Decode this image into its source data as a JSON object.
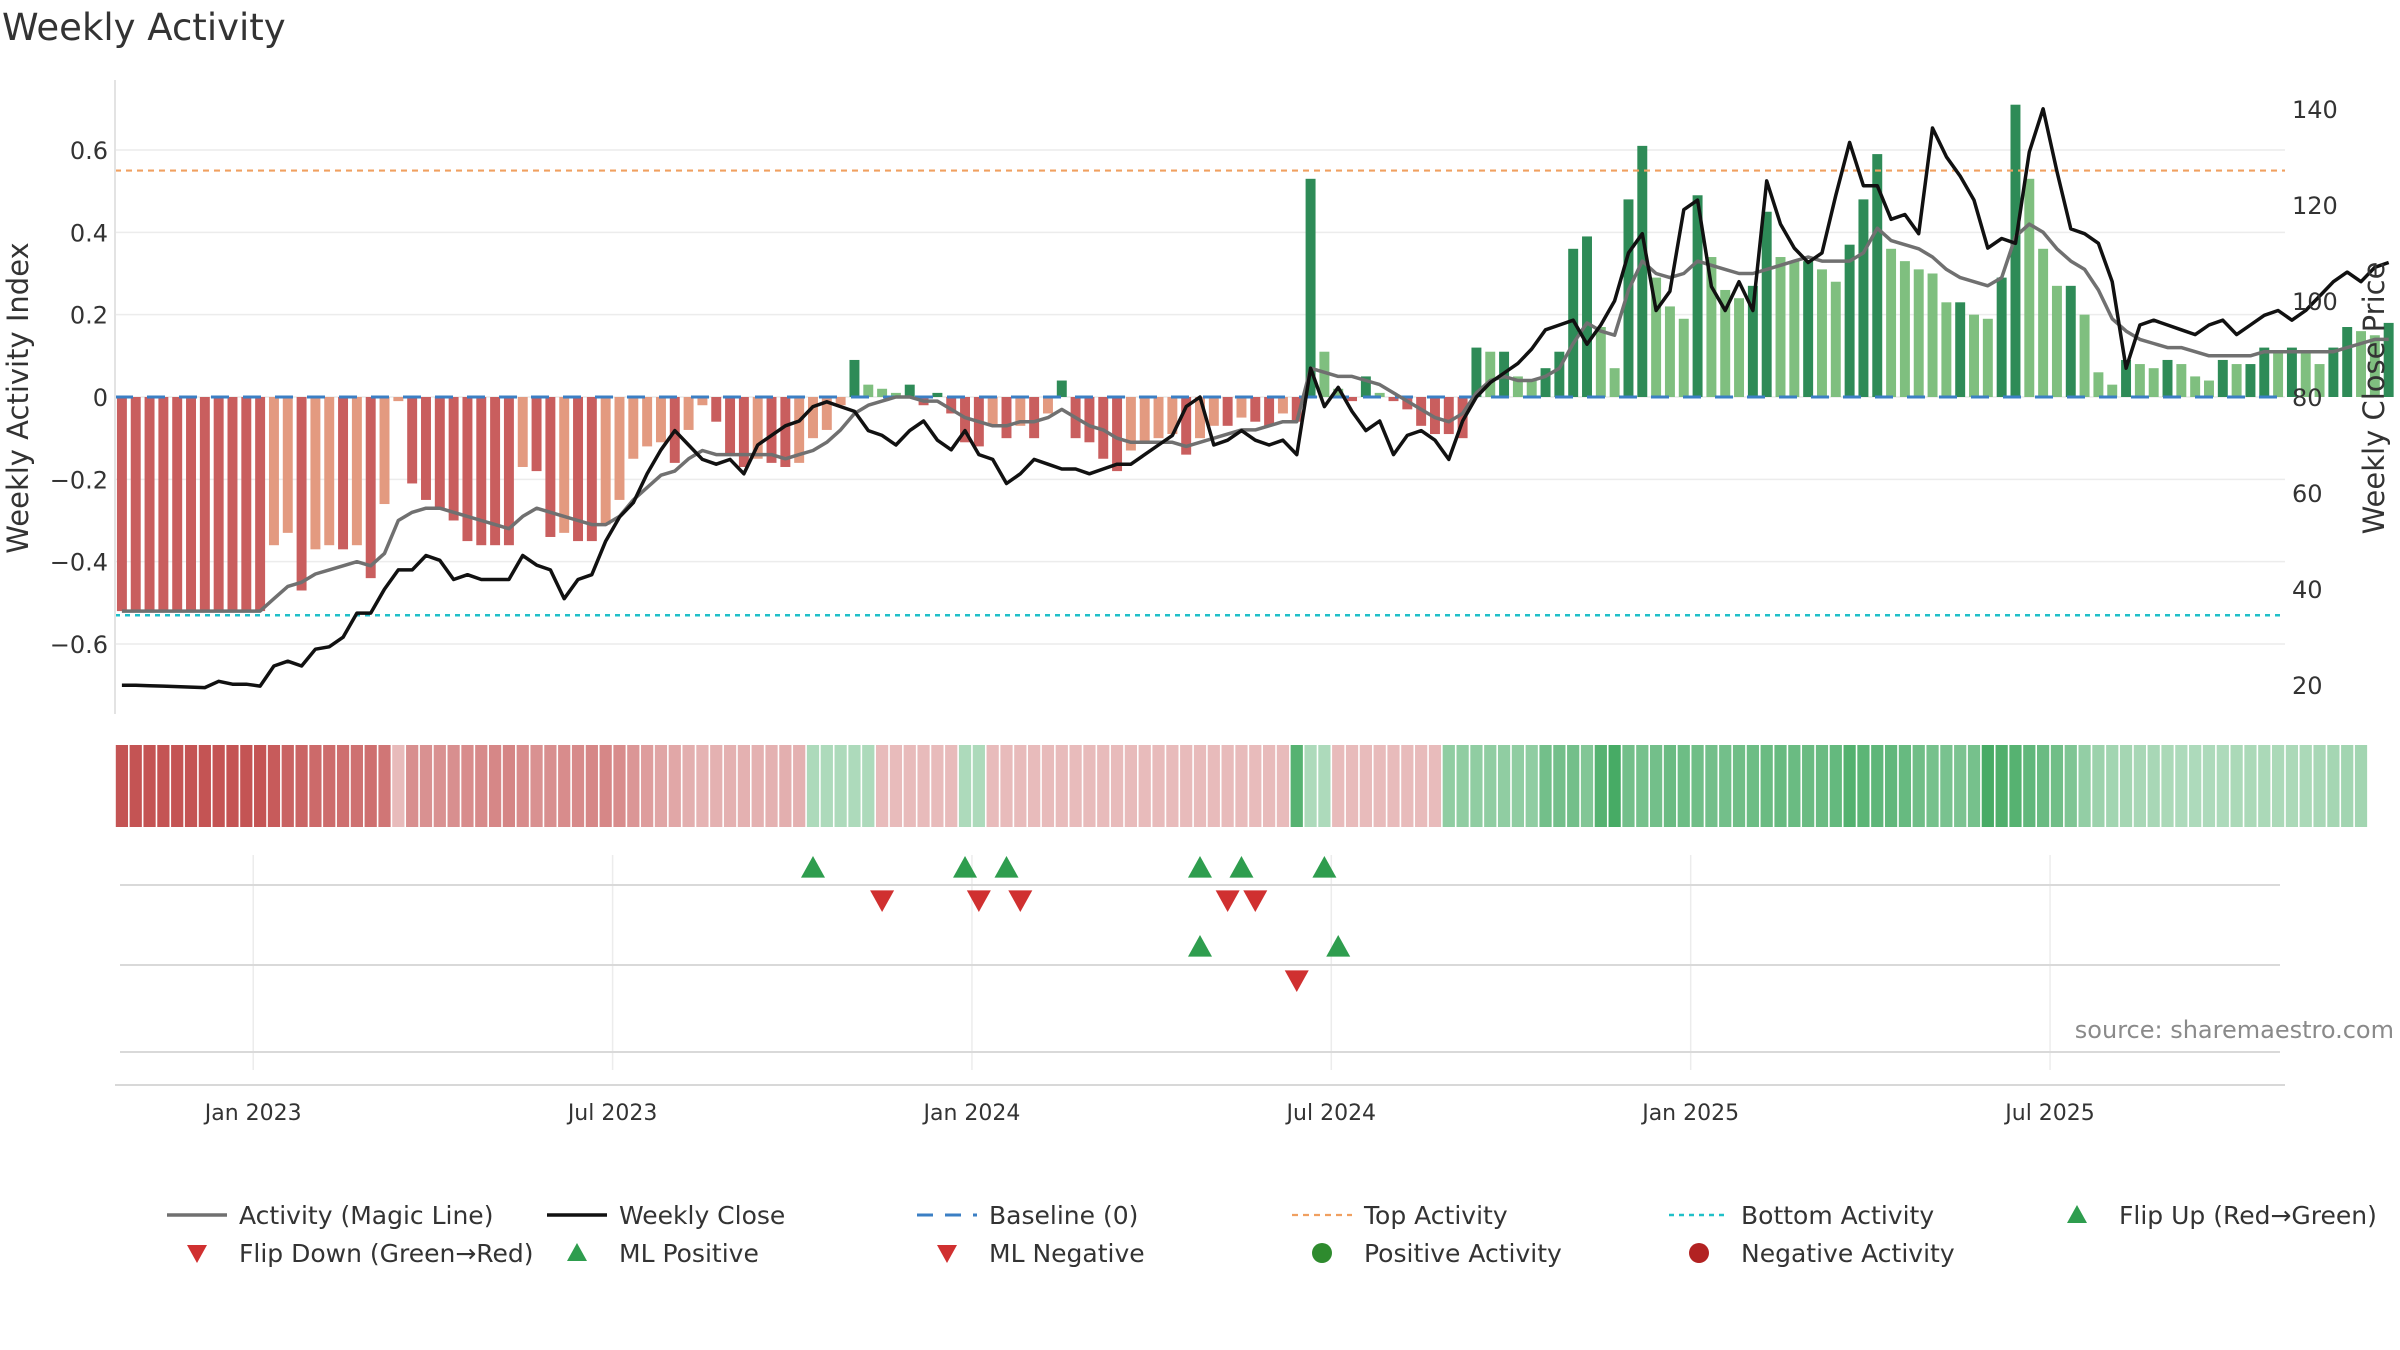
{
  "chart_data": {
    "type": "bar",
    "title": "Weekly Activity",
    "source": "source: sharemaestro.com",
    "ylabel_left": "Weekly Activity Index",
    "ylabel_right": "Weekly Close Price",
    "ylim_left": [
      -0.77,
      0.77
    ],
    "ylim_right": [
      14,
      146
    ],
    "yticks_left": [
      {
        "value": 0.6,
        "label": "0.6"
      },
      {
        "value": 0.4,
        "label": "0.4"
      },
      {
        "value": 0.2,
        "label": "0.2"
      },
      {
        "value": 0,
        "label": "0"
      },
      {
        "value": -0.2,
        "label": "−0.2"
      },
      {
        "value": -0.4,
        "label": "−0.4"
      },
      {
        "value": -0.6,
        "label": "−0.6"
      }
    ],
    "yticks_right": [
      {
        "value": 140,
        "label": "140"
      },
      {
        "value": 120,
        "label": "120"
      },
      {
        "value": 100,
        "label": "100"
      },
      {
        "value": 80,
        "label": "80"
      },
      {
        "value": 60,
        "label": "60"
      },
      {
        "value": 40,
        "label": "40"
      },
      {
        "value": 20,
        "label": "20"
      }
    ],
    "xticks": [
      {
        "week": 9.5,
        "label": "Jan 2023"
      },
      {
        "week": 35.5,
        "label": "Jul 2023"
      },
      {
        "week": 61.5,
        "label": "Jan 2024"
      },
      {
        "week": 87.5,
        "label": "Jul 2024"
      },
      {
        "week": 113.5,
        "label": "Jan 2025"
      },
      {
        "week": 139.5,
        "label": "Jul 2025"
      }
    ],
    "n_weeks": 157,
    "top_activity": 0.55,
    "bottom_activity": -0.53,
    "baseline": 0,
    "activity": [
      -0.52,
      -0.52,
      -0.52,
      -0.52,
      -0.52,
      -0.52,
      -0.52,
      -0.52,
      -0.52,
      -0.52,
      -0.52,
      -0.36,
      -0.33,
      -0.47,
      -0.37,
      -0.36,
      -0.37,
      -0.36,
      -0.44,
      -0.26,
      -0.01,
      -0.21,
      -0.25,
      -0.27,
      -0.3,
      -0.35,
      -0.36,
      -0.36,
      -0.36,
      -0.17,
      -0.18,
      -0.34,
      -0.33,
      -0.35,
      -0.35,
      -0.31,
      -0.25,
      -0.15,
      -0.12,
      -0.11,
      -0.16,
      -0.08,
      -0.02,
      -0.06,
      -0.14,
      -0.17,
      -0.15,
      -0.16,
      -0.17,
      -0.16,
      -0.1,
      -0.08,
      -0.02,
      0.09,
      0.03,
      0.02,
      0.01,
      0.03,
      -0.02,
      0.01,
      -0.04,
      -0.11,
      -0.12,
      -0.07,
      -0.1,
      -0.07,
      -0.1,
      -0.04,
      0.04,
      -0.1,
      -0.11,
      -0.15,
      -0.18,
      -0.13,
      -0.11,
      -0.1,
      -0.09,
      -0.14,
      -0.1,
      -0.07,
      -0.07,
      -0.05,
      -0.06,
      -0.07,
      -0.04,
      -0.06,
      0.53,
      0.11,
      0.02,
      -0.01,
      0.05,
      0.01,
      -0.01,
      -0.03,
      -0.07,
      -0.09,
      -0.09,
      -0.1,
      0.12,
      0.11,
      0.11,
      0.05,
      0.04,
      0.07,
      0.11,
      0.36,
      0.39,
      0.17,
      0.07,
      0.48,
      0.61,
      0.29,
      0.22,
      0.19,
      0.49,
      0.34,
      0.26,
      0.24,
      0.27,
      0.45,
      0.34,
      0.33,
      0.33,
      0.31,
      0.28,
      0.37,
      0.48,
      0.59,
      0.36,
      0.33,
      0.31,
      0.3,
      0.23,
      0.23,
      0.2,
      0.19,
      0.29,
      0.71,
      0.53,
      0.36,
      0.27,
      0.27,
      0.2,
      0.06,
      0.03,
      0.09,
      0.08,
      0.07,
      0.09,
      0.08,
      0.05,
      0.04,
      0.09,
      0.08,
      0.08,
      0.12,
      0.11,
      0.12,
      0.11,
      0.08,
      0.12,
      0.17,
      0.16,
      0.15,
      0.18
    ],
    "magic_line": [
      -0.52,
      -0.52,
      -0.52,
      -0.52,
      -0.52,
      -0.52,
      -0.52,
      -0.52,
      -0.52,
      -0.52,
      -0.52,
      -0.49,
      -0.46,
      -0.45,
      -0.43,
      -0.42,
      -0.41,
      -0.4,
      -0.41,
      -0.38,
      -0.3,
      -0.28,
      -0.27,
      -0.27,
      -0.28,
      -0.29,
      -0.3,
      -0.31,
      -0.32,
      -0.29,
      -0.27,
      -0.28,
      -0.29,
      -0.3,
      -0.31,
      -0.31,
      -0.29,
      -0.25,
      -0.22,
      -0.19,
      -0.18,
      -0.15,
      -0.13,
      -0.14,
      -0.14,
      -0.14,
      -0.14,
      -0.14,
      -0.15,
      -0.14,
      -0.13,
      -0.11,
      -0.08,
      -0.04,
      -0.02,
      -0.01,
      0.0,
      0.0,
      -0.01,
      -0.01,
      -0.03,
      -0.05,
      -0.06,
      -0.07,
      -0.07,
      -0.06,
      -0.06,
      -0.05,
      -0.03,
      -0.05,
      -0.07,
      -0.08,
      -0.1,
      -0.11,
      -0.11,
      -0.11,
      -0.11,
      -0.12,
      -0.11,
      -0.1,
      -0.09,
      -0.08,
      -0.08,
      -0.07,
      -0.06,
      -0.06,
      0.07,
      0.06,
      0.05,
      0.05,
      0.04,
      0.03,
      0.01,
      -0.01,
      -0.03,
      -0.05,
      -0.06,
      -0.04,
      0.01,
      0.04,
      0.05,
      0.04,
      0.04,
      0.05,
      0.07,
      0.13,
      0.18,
      0.16,
      0.15,
      0.26,
      0.33,
      0.3,
      0.29,
      0.3,
      0.33,
      0.32,
      0.31,
      0.3,
      0.3,
      0.31,
      0.32,
      0.33,
      0.34,
      0.33,
      0.33,
      0.33,
      0.35,
      0.41,
      0.38,
      0.37,
      0.36,
      0.34,
      0.31,
      0.29,
      0.28,
      0.27,
      0.29,
      0.39,
      0.42,
      0.4,
      0.36,
      0.33,
      0.31,
      0.26,
      0.19,
      0.16,
      0.14,
      0.13,
      0.12,
      0.12,
      0.11,
      0.1,
      0.1,
      0.1,
      0.1,
      0.11,
      0.11,
      0.11,
      0.11,
      0.11,
      0.11,
      0.12,
      0.13,
      0.14,
      0.14
    ],
    "weekly_close": [
      20,
      20,
      19.9,
      19.8,
      19.7,
      19.6,
      19.5,
      20.8,
      20.2,
      20.2,
      19.8,
      24,
      25,
      24,
      27.5,
      28,
      30,
      35,
      35,
      40,
      44,
      44,
      47,
      46,
      42,
      43,
      42,
      42,
      42,
      47,
      45,
      44,
      38,
      42,
      43,
      50,
      55,
      58,
      64,
      69,
      73,
      70,
      67,
      66,
      67,
      64,
      70,
      72,
      74,
      75,
      78,
      79,
      78,
      77,
      73,
      72,
      70,
      73,
      75,
      71,
      69,
      73,
      68,
      67,
      62,
      64,
      67,
      66,
      65,
      65,
      64,
      65,
      66,
      66,
      68,
      70,
      72,
      78,
      80,
      70,
      71,
      73,
      71,
      70,
      71,
      68,
      86,
      78,
      82,
      77,
      73,
      75,
      68,
      72,
      73,
      71,
      67,
      75,
      80,
      83,
      85,
      87,
      90,
      94,
      95,
      96,
      91,
      95,
      100,
      110,
      114,
      98,
      102,
      119,
      121,
      103,
      98,
      104,
      98,
      125,
      116,
      111,
      108,
      110,
      122,
      133,
      124,
      124,
      117,
      118,
      114,
      136,
      130,
      126,
      121,
      111,
      113,
      112,
      131,
      140,
      127,
      115,
      114,
      112,
      104,
      86,
      95,
      96,
      95,
      94,
      93,
      95,
      96,
      93,
      95,
      97,
      98,
      96,
      98,
      101,
      104,
      106,
      104,
      107,
      108
    ],
    "heat_strip": [
      -0.52,
      -0.52,
      -0.52,
      -0.52,
      -0.52,
      -0.52,
      -0.52,
      -0.52,
      -0.52,
      -0.52,
      -0.52,
      -0.49,
      -0.46,
      -0.45,
      -0.43,
      -0.42,
      -0.41,
      -0.4,
      -0.41,
      -0.38,
      -0.1,
      -0.28,
      -0.27,
      -0.27,
      -0.28,
      -0.29,
      -0.3,
      -0.31,
      -0.32,
      -0.29,
      -0.27,
      -0.28,
      -0.29,
      -0.3,
      -0.31,
      -0.31,
      -0.29,
      -0.25,
      -0.22,
      -0.19,
      -0.18,
      -0.15,
      -0.13,
      -0.14,
      -0.14,
      -0.14,
      -0.14,
      -0.14,
      -0.15,
      -0.14,
      0.1,
      0.1,
      0.1,
      0.1,
      0.1,
      -0.1,
      -0.1,
      -0.1,
      -0.1,
      -0.1,
      -0.1,
      0.1,
      0.1,
      -0.1,
      -0.1,
      -0.1,
      -0.1,
      -0.1,
      -0.1,
      -0.1,
      -0.1,
      -0.1,
      -0.1,
      -0.1,
      -0.1,
      -0.1,
      -0.1,
      -0.1,
      -0.1,
      -0.1,
      -0.1,
      -0.1,
      -0.1,
      -0.1,
      -0.1,
      0.4,
      0.1,
      0.1,
      -0.1,
      -0.1,
      -0.1,
      -0.1,
      -0.1,
      -0.1,
      -0.1,
      -0.1,
      0.2,
      0.2,
      0.2,
      0.2,
      0.2,
      0.2,
      0.2,
      0.3,
      0.3,
      0.3,
      0.25,
      0.4,
      0.45,
      0.3,
      0.29,
      0.3,
      0.33,
      0.32,
      0.31,
      0.3,
      0.3,
      0.31,
      0.32,
      0.33,
      0.34,
      0.33,
      0.33,
      0.33,
      0.35,
      0.41,
      0.38,
      0.37,
      0.36,
      0.34,
      0.31,
      0.29,
      0.28,
      0.27,
      0.29,
      0.45,
      0.42,
      0.4,
      0.36,
      0.33,
      0.31,
      0.26,
      0.19,
      0.16,
      0.14,
      0.13,
      0.12,
      0.12,
      0.11,
      0.1,
      0.1,
      0.1,
      0.1,
      0.11,
      0.11,
      0.11,
      0.11,
      0.11,
      0.11,
      0.12,
      0.13,
      0.14,
      0.14
    ],
    "flip_up_weeks": [
      50,
      61,
      64,
      78,
      81,
      87
    ],
    "flip_down_weeks": [
      55,
      62,
      65,
      80,
      82
    ],
    "ml_positive_weeks": [
      78,
      88
    ],
    "ml_negative_weeks": [
      85
    ],
    "legend": [
      {
        "key": "magic",
        "label": "Activity (Magic Line)"
      },
      {
        "key": "close",
        "label": "Weekly Close"
      },
      {
        "key": "baseline",
        "label": "Baseline (0)"
      },
      {
        "key": "top",
        "label": "Top Activity"
      },
      {
        "key": "bottom",
        "label": "Bottom Activity"
      },
      {
        "key": "flipup",
        "label": "Flip Up (Red→Green)"
      },
      {
        "key": "flipdown",
        "label": "Flip Down (Green→Red)"
      },
      {
        "key": "mlpos",
        "label": "ML Positive"
      },
      {
        "key": "mlneg",
        "label": "ML Negative"
      },
      {
        "key": "posact",
        "label": "Positive Activity"
      },
      {
        "key": "negact",
        "label": "Negative Activity"
      }
    ],
    "colors": {
      "neg_dark": "#c95e5e",
      "neg_light": "#e39a80",
      "pos_dark": "#2e8b57",
      "pos_light": "#7fbf7f",
      "magic_line": "#707070",
      "close_line": "#111111",
      "baseline": "#3b7fc4",
      "top_line": "#f0a060",
      "bottom_line": "#20c0c8",
      "flip_up": "#2e9d4e",
      "flip_down": "#d03030",
      "pos_dot": "#2e8b2e",
      "neg_dot": "#b22222"
    }
  }
}
